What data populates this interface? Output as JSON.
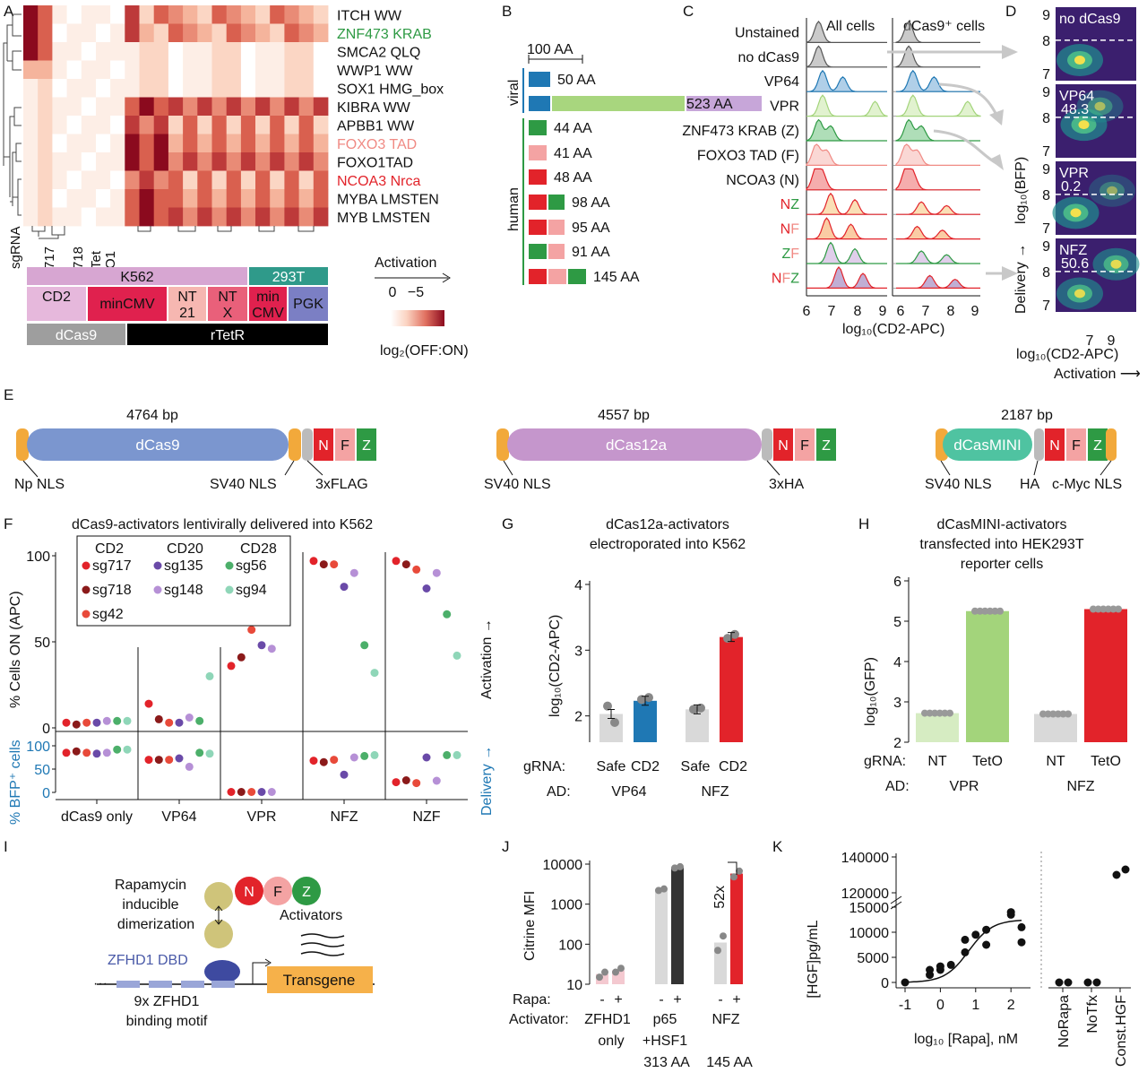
{
  "panels": {
    "A": {
      "label": "A",
      "rows": [
        "ITCH WW",
        "ZNF473 KRAB",
        "SMCA2 QLQ",
        "WWP1 WW",
        "SOX1 HMG_box",
        "KIBRA WW",
        "APBB1 WW",
        "FOXO3 TAD",
        "FOXO1TAD",
        "NCOA3 Nrca",
        "MYBA LMSTEN",
        "MYB LMSTEN"
      ],
      "row_colors": [
        "#111",
        "#2e9a44",
        "#111",
        "#111",
        "#111",
        "#111",
        "#111",
        "#f08a84",
        "#111",
        "#e2232a",
        "#111",
        "#111"
      ],
      "col_labels": [
        "717",
        "718",
        "Tet",
        "O1"
      ],
      "sgrna_label": "sgRNA",
      "cell_line_bars": [
        "K562",
        "293T"
      ],
      "reporter_bars": [
        "CD2",
        "minCMV",
        "NT 21",
        "NT X",
        "min CMV",
        "PGK"
      ],
      "system_bars": [
        "dCas9",
        "rTetR"
      ],
      "legend_title": "Activation",
      "legend_ticks": [
        "0",
        "−5"
      ],
      "legend_label": "log₂(OFF:ON)"
    },
    "B": {
      "label": "B",
      "scale": "100 AA",
      "group_viral": "viral",
      "group_human": "human",
      "bars": [
        "50 AA",
        "523 AA",
        "44 AA",
        "41 AA",
        "48 AA",
        "98 AA",
        "95 AA",
        "91 AA",
        "145 AA"
      ]
    },
    "C": {
      "label": "C",
      "col_all": "All cells",
      "col_dcas9": "dCas9⁺ cells",
      "rows": [
        "Unstained",
        "no dCas9",
        "VP64",
        "VPR",
        "ZNF473 KRAB (Z)",
        "FOXO3 TAD (F)",
        "NCOA3 (N)",
        "NZ",
        "NF",
        "ZF",
        "NFZ"
      ],
      "xticks": [
        "6",
        "7",
        "8",
        "9"
      ],
      "xlabel": "log₁₀(CD2-APC)"
    },
    "D": {
      "label": "D",
      "panels": [
        {
          "name": "no dCas9",
          "value": ""
        },
        {
          "name": "VP64",
          "value": "48.3"
        },
        {
          "name": "VPR",
          "value": "0.2"
        },
        {
          "name": "NFZ",
          "value": "50.6"
        }
      ],
      "yticks": [
        "9",
        "8",
        "7"
      ],
      "xticks": [
        "7",
        "9"
      ],
      "ylabel": "log₁₀(BFP)",
      "ylabel2": "Delivery →",
      "xlabel": "log₁₀(CD2-APC)",
      "xlabel2": "Activation ⟶"
    },
    "E": {
      "label": "E",
      "constructs": [
        {
          "name": "dCas9",
          "size": "4764 bp",
          "labels": [
            "Np NLS",
            "SV40 NLS",
            "3xFLAG"
          ]
        },
        {
          "name": "dCas12a",
          "size": "4557 bp",
          "labels": [
            "SV40 NLS",
            "3xHA"
          ]
        },
        {
          "name": "dCasMINI",
          "size": "2187 bp",
          "labels": [
            "SV40 NLS",
            "HA",
            "c-Myc NLS"
          ]
        }
      ],
      "domains": [
        "N",
        "F",
        "Z"
      ]
    },
    "F": {
      "label": "F",
      "title": "dCas9-activators lentivirally delivered into K562",
      "legend_headers": [
        "CD2",
        "CD20",
        "CD28"
      ],
      "legend_items": [
        "sg717",
        "sg718",
        "sg42",
        "sg135",
        "sg148",
        "sg56",
        "sg94"
      ],
      "groups": [
        "dCas9 only",
        "VP64",
        "VPR",
        "NFZ",
        "NZF"
      ],
      "ylabel_top": "% Cells ON (APC)",
      "ylabel_bottom": "% BFP⁺ cells",
      "yticks_top": [
        "100",
        "50",
        "0"
      ],
      "yticks_bottom": [
        "100",
        "50",
        "0"
      ],
      "side_act": "Activation →",
      "side_del": "Delivery →"
    },
    "G": {
      "label": "G",
      "title1": "dCas12a-activators",
      "title2": "electroporated into K562",
      "ylabel": "log₁₀(CD2-APC)",
      "yticks": [
        "4",
        "3",
        "2"
      ],
      "grna_label": "gRNA:",
      "ad_label": "AD:",
      "grna": [
        "Safe",
        "CD2",
        "Safe",
        "CD2"
      ],
      "ad": [
        "VP64",
        "NFZ"
      ]
    },
    "H": {
      "label": "H",
      "title1": "dCasMINI-activators",
      "title2": "transfected into HEK293T",
      "title3": "reporter cells",
      "ylabel": "log₁₀(GFP)",
      "yticks": [
        "6",
        "5",
        "4",
        "3",
        "2"
      ],
      "grna_label": "gRNA:",
      "ad_label": "AD:",
      "grna": [
        "NT",
        "TetO",
        "NT",
        "TetO"
      ],
      "ad": [
        "VPR",
        "NFZ"
      ]
    },
    "I": {
      "label": "I",
      "rapa1": "Rapamycin",
      "rapa2": "inducible",
      "rapa3": "dimerization",
      "activators": "Activators",
      "dbd": "ZFHD1 DBD",
      "motif1": "9x ZFHD1",
      "motif2": "binding motif",
      "transgene": "Transgene",
      "domains": [
        "N",
        "F",
        "Z"
      ]
    },
    "J": {
      "label": "J",
      "ylabel": "Citrine MFI",
      "yticks": [
        "10000",
        "1000",
        "100",
        "10"
      ],
      "rapa_label": "Rapa:",
      "activator_label": "Activator:",
      "signs": [
        "-",
        "+",
        "-",
        "+",
        "-",
        "+"
      ],
      "act1": "ZFHD1",
      "act1b": "only",
      "act2": "p65",
      "act2b": "+HSF1",
      "act2c": "313 AA",
      "act3": "NFZ",
      "act3c": "145 AA",
      "fold": "52x"
    },
    "K": {
      "label": "K",
      "ylabel": "[HGF]pg/mL",
      "yticks": [
        "140000",
        "120000",
        "15000",
        "10000",
        "5000",
        "0"
      ],
      "xticks": [
        "-1",
        "0",
        "1",
        "2"
      ],
      "xlabel": "log₁₀ [Rapa], nM",
      "controls": [
        "NoRapa",
        "NoTfx",
        "Const.HGF"
      ]
    }
  },
  "chart_data": [
    {
      "panel": "F",
      "type": "scatter",
      "groups": [
        "dCas9 only",
        "VP64",
        "VPR",
        "NFZ",
        "NZF"
      ],
      "series": [
        {
          "name": "sg717",
          "color": "#e2232a",
          "on": [
            3,
            14,
            36,
            97,
            97
          ],
          "bfp": [
            85,
            70,
            1,
            68,
            22
          ]
        },
        {
          "name": "sg718",
          "color": "#8b1a1a",
          "on": [
            2,
            5,
            41,
            95,
            95
          ],
          "bfp": [
            88,
            70,
            1,
            65,
            26
          ]
        },
        {
          "name": "sg42",
          "color": "#e84a3a",
          "on": [
            3,
            3,
            57,
            95,
            92
          ],
          "bfp": [
            85,
            70,
            1,
            70,
            20
          ]
        },
        {
          "name": "sg135",
          "color": "#6a4aa8",
          "on": [
            3,
            3,
            48,
            82,
            81
          ],
          "bfp": [
            83,
            73,
            1,
            38,
            75
          ]
        },
        {
          "name": "sg148",
          "color": "#b690d6",
          "on": [
            4,
            6,
            46,
            90,
            90
          ],
          "bfp": [
            85,
            55,
            1,
            75,
            25
          ]
        },
        {
          "name": "sg56",
          "color": "#4caf6a",
          "on": [
            4,
            4,
            null,
            48,
            66
          ],
          "bfp": [
            92,
            85,
            null,
            78,
            80
          ]
        },
        {
          "name": "sg94",
          "color": "#8fd6b8",
          "on": [
            4,
            30,
            null,
            32,
            42
          ],
          "bfp": [
            92,
            83,
            null,
            80,
            80
          ]
        }
      ]
    },
    {
      "panel": "G",
      "type": "bar",
      "categories": [
        "Safe VP64",
        "CD2 VP64",
        "Safe NFZ",
        "CD2 NFZ"
      ],
      "values": [
        2.03,
        2.23,
        2.1,
        3.2
      ],
      "ylim": [
        1.6,
        4
      ],
      "points": [
        [
          2.15,
          1.9
        ],
        [
          2.25,
          2.28
        ],
        [
          2.1,
          2.12
        ],
        [
          3.18,
          3.24
        ]
      ],
      "colors": [
        "#d9d9d9",
        "#1f78b4",
        "#d9d9d9",
        "#e2232a"
      ]
    },
    {
      "panel": "H",
      "type": "bar",
      "categories": [
        "NT VPR",
        "TetO VPR",
        "NT NFZ",
        "TetO NFZ"
      ],
      "values": [
        2.72,
        5.25,
        2.7,
        5.3
      ],
      "ylim": [
        2,
        6
      ],
      "colors": [
        "#d6ecc2",
        "#a3d47b",
        "#d9d9d9",
        "#e2232a"
      ]
    },
    {
      "panel": "J",
      "type": "bar",
      "log": true,
      "categories": [
        "ZFHD1 -",
        "ZFHD1 +",
        "p65 -",
        "p65 +",
        "NFZ -",
        "NFZ +"
      ],
      "values": [
        18,
        22,
        2300,
        8300,
        110,
        5800
      ],
      "points": [
        [
          15,
          20
        ],
        [
          20,
          25
        ],
        [
          2200,
          2400
        ],
        [
          8000,
          8600
        ],
        [
          70,
          160
        ],
        [
          4800,
          6700
        ]
      ],
      "colors": [
        "#f4c9d0",
        "#f4c9d0",
        "#d9d9d9",
        "#333333",
        "#d9d9d9",
        "#e2232a"
      ]
    },
    {
      "panel": "K",
      "type": "scatter",
      "x": [
        -1,
        -0.3,
        -0.3,
        0,
        0,
        0.3,
        0.7,
        0.7,
        1,
        1.3,
        1.3,
        2,
        2,
        2.3,
        2.3
      ],
      "y": [
        0,
        1500,
        2500,
        2500,
        3200,
        3500,
        8500,
        6000,
        9500,
        10500,
        7500,
        14000,
        13500,
        11000,
        8000
      ],
      "controls": [
        {
          "name": "NoRapa",
          "y": [
            0,
            0
          ]
        },
        {
          "name": "NoTfx",
          "y": [
            0,
            0
          ]
        },
        {
          "name": "Const.HGF",
          "y": [
            130000,
            133000
          ]
        }
      ]
    }
  ]
}
